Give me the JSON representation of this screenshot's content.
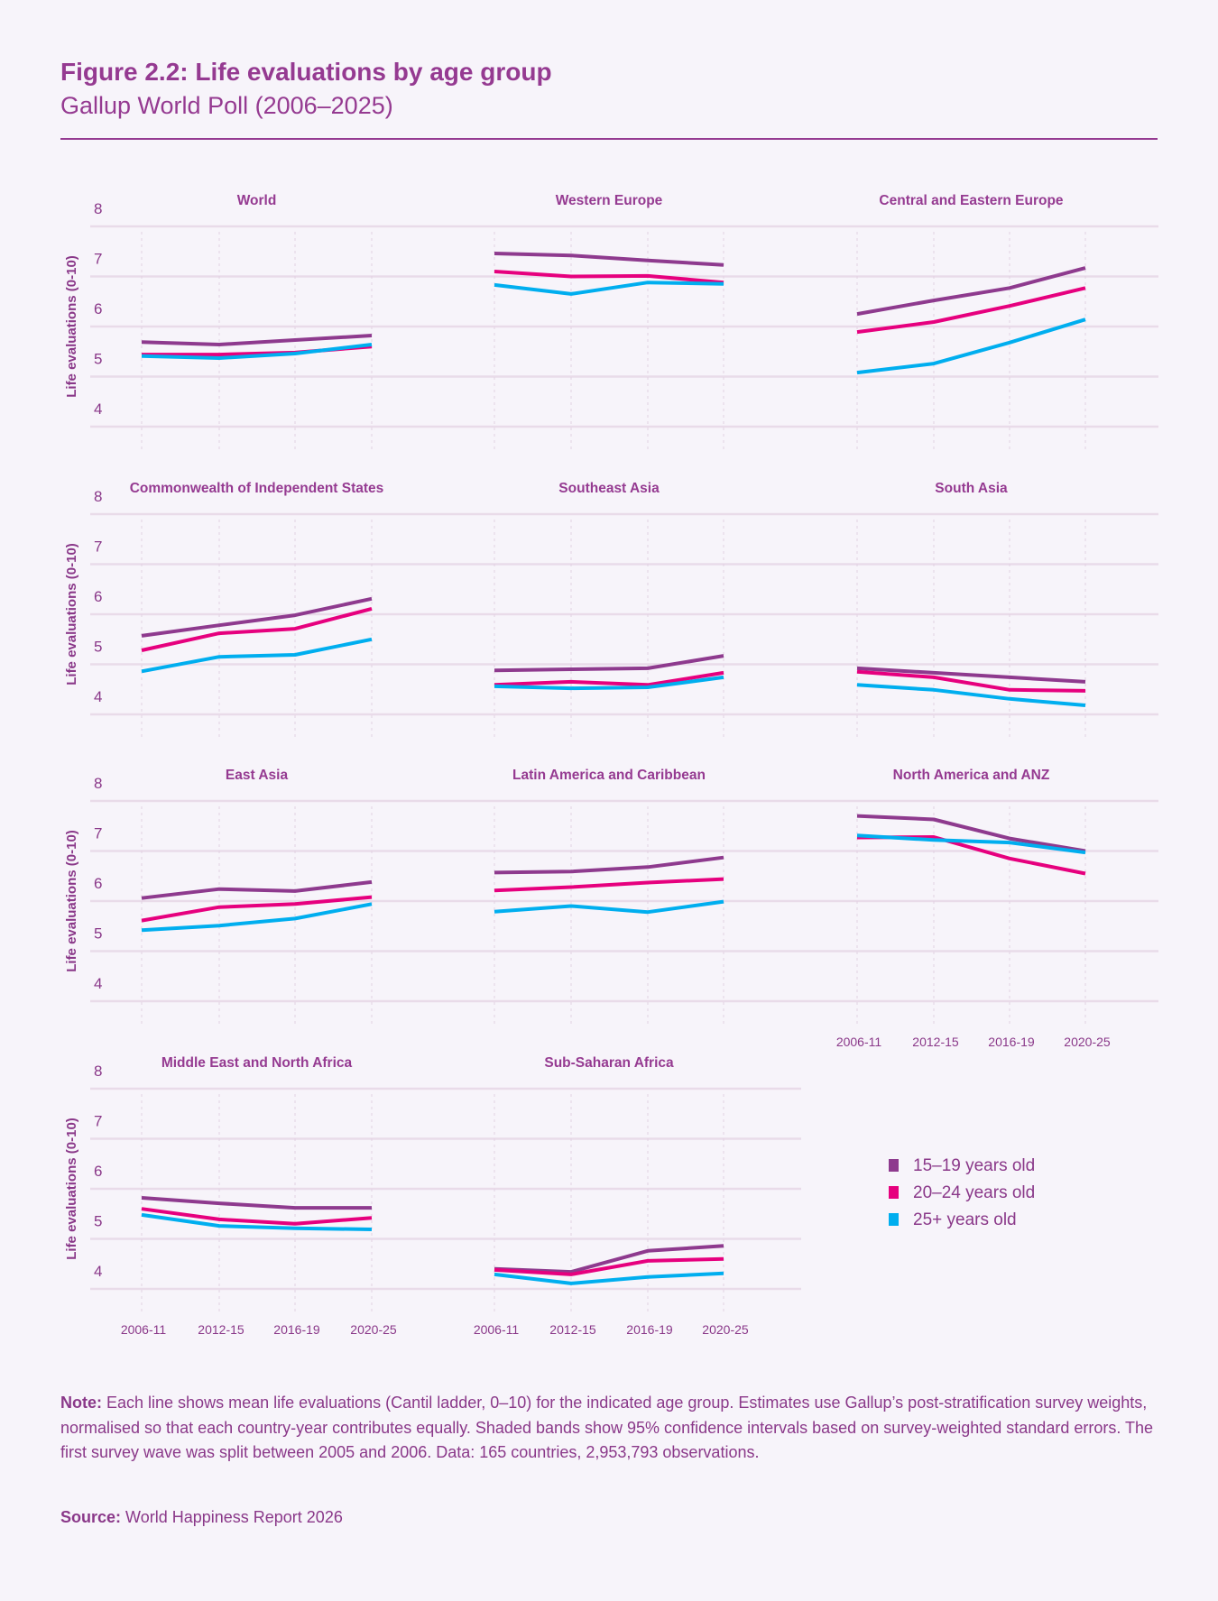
{
  "header": {
    "title": "Figure 2.2: Life evaluations by age group",
    "subtitle": "Gallup World Poll (2006–2025)"
  },
  "colors": {
    "accent": "#953a91",
    "series": [
      "#8e3a8e",
      "#e6007e",
      "#00aeef"
    ],
    "grid": "#e9dbe9"
  },
  "chart_data": {
    "type": "line",
    "layout": "small-multiples",
    "ylabel": "Life evaluations (0-10)",
    "ylim": [
      4,
      8
    ],
    "yticks": [
      4,
      5,
      6,
      7,
      8
    ],
    "categories": [
      "2006-11",
      "2012-15",
      "2016-19",
      "2020-25"
    ],
    "grid": true,
    "legend": {
      "placement": "bottom-right",
      "entries": [
        "15–19 years old",
        "20–24 years old",
        "25+ years old"
      ]
    },
    "panels": [
      {
        "title": "World",
        "series": [
          [
            5.69,
            5.64,
            5.73,
            5.82
          ],
          [
            5.44,
            5.44,
            5.48,
            5.6
          ],
          [
            5.41,
            5.37,
            5.46,
            5.64
          ]
        ]
      },
      {
        "title": "Western Europe",
        "series": [
          [
            7.46,
            7.42,
            7.32,
            7.23
          ],
          [
            7.1,
            7.0,
            7.01,
            6.88
          ],
          [
            6.83,
            6.65,
            6.88,
            6.85
          ]
        ]
      },
      {
        "title": "Central and Eastern Europe",
        "series": [
          [
            6.25,
            6.52,
            6.77,
            7.17
          ],
          [
            5.89,
            6.09,
            6.41,
            6.77
          ],
          [
            5.08,
            5.26,
            5.68,
            6.14
          ]
        ]
      },
      {
        "title": "Commonwealth of Independent States",
        "series": [
          [
            5.57,
            5.78,
            5.98,
            6.31
          ],
          [
            5.28,
            5.62,
            5.71,
            6.11
          ],
          [
            4.86,
            5.15,
            5.19,
            5.5
          ]
        ]
      },
      {
        "title": "Southeast Asia",
        "series": [
          [
            4.88,
            4.9,
            4.92,
            5.17
          ],
          [
            4.59,
            4.65,
            4.59,
            4.83
          ],
          [
            4.56,
            4.52,
            4.54,
            4.74
          ]
        ]
      },
      {
        "title": "South Asia",
        "series": [
          [
            4.92,
            4.83,
            4.74,
            4.65
          ],
          [
            4.85,
            4.74,
            4.49,
            4.47
          ],
          [
            4.59,
            4.49,
            4.31,
            4.18
          ]
        ]
      },
      {
        "title": "East Asia",
        "series": [
          [
            6.06,
            6.24,
            6.2,
            6.38
          ],
          [
            5.61,
            5.88,
            5.94,
            6.08
          ],
          [
            5.42,
            5.51,
            5.65,
            5.94
          ]
        ]
      },
      {
        "title": "Latin America and Caribbean",
        "series": [
          [
            6.57,
            6.59,
            6.68,
            6.87
          ],
          [
            6.21,
            6.28,
            6.37,
            6.44
          ],
          [
            5.79,
            5.9,
            5.78,
            5.99
          ]
        ]
      },
      {
        "title": "North America and ANZ",
        "series": [
          [
            7.7,
            7.63,
            7.25,
            7.0
          ],
          [
            7.27,
            7.28,
            6.85,
            6.55
          ],
          [
            7.31,
            7.22,
            7.17,
            6.97
          ]
        ]
      },
      {
        "title": "Middle East and North Africa",
        "series": [
          [
            5.82,
            5.71,
            5.62,
            5.62
          ],
          [
            5.6,
            5.39,
            5.3,
            5.42
          ],
          [
            5.48,
            5.26,
            5.21,
            5.19
          ]
        ]
      },
      {
        "title": "Sub-Saharan Africa",
        "series": [
          [
            4.4,
            4.34,
            4.76,
            4.86
          ],
          [
            4.38,
            4.29,
            4.56,
            4.6
          ],
          [
            4.29,
            4.11,
            4.24,
            4.31
          ]
        ]
      }
    ]
  },
  "note": {
    "label": "Note:",
    "text": " Each line shows mean life evaluations (Cantil ladder, 0–10) for the indicated age group. Estimates use Gallup’s post-stratification survey weights, normalised so that each country-year contributes equally. Shaded bands show 95% confidence intervals based on survey-weighted standard errors. The first survey wave was split between 2005 and 2006. Data: 165 countries, 2,953,793 observations."
  },
  "source": {
    "label": "Source:",
    "text": " World Happiness Report 2026"
  }
}
